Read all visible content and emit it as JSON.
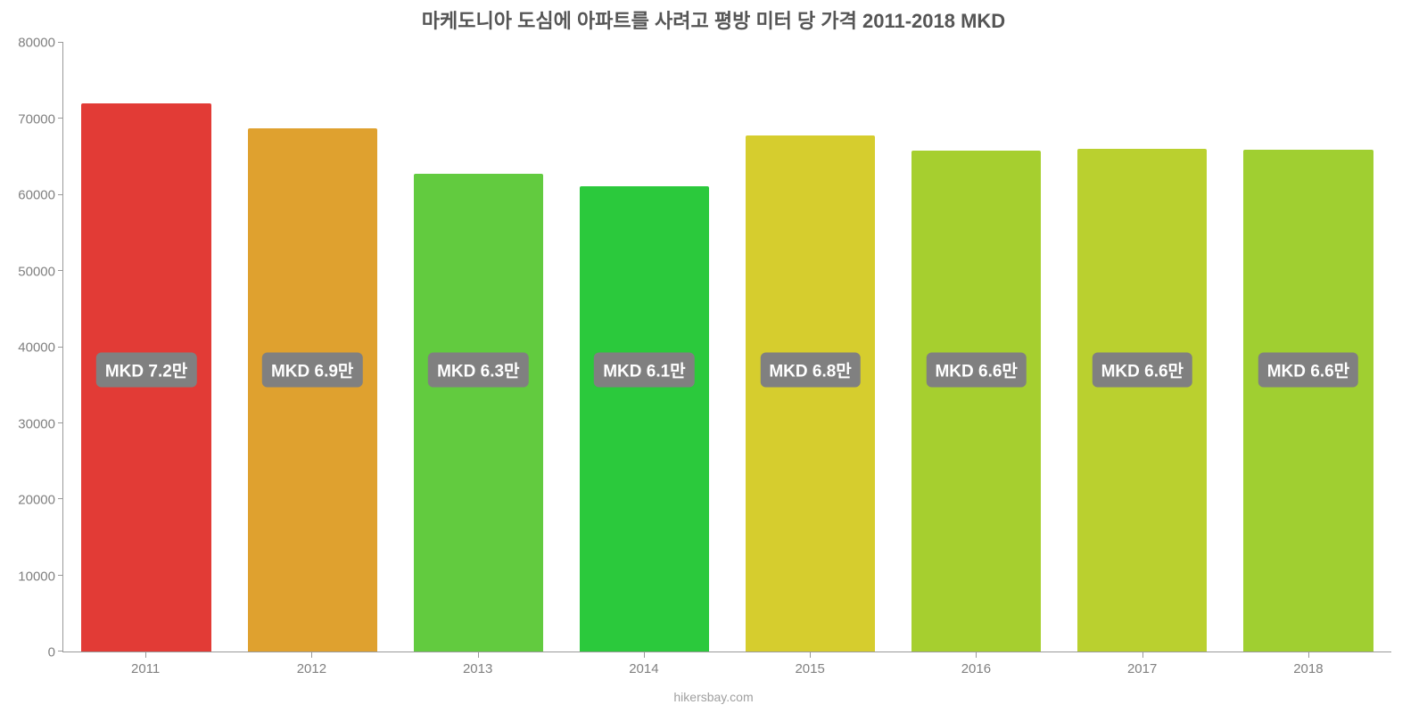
{
  "chart": {
    "type": "bar",
    "title": "마케도니아 도심에 아파트를 사려고 평방 미터 당 가격 2011-2018 MKD",
    "title_fontsize": 22,
    "title_color": "#555555",
    "categories": [
      "2011",
      "2012",
      "2013",
      "2014",
      "2015",
      "2016",
      "2017",
      "2018"
    ],
    "values": [
      72000,
      68700,
      62800,
      61200,
      67800,
      65800,
      66100,
      66000
    ],
    "bar_labels": [
      "MKD 7.2만",
      "MKD 6.9만",
      "MKD 6.3만",
      "MKD 6.1만",
      "MKD 6.8만",
      "MKD 6.6만",
      "MKD 6.6만",
      "MKD 6.6만"
    ],
    "bar_colors": [
      "#e23b36",
      "#dfa12f",
      "#62cb3f",
      "#2bc93c",
      "#d6cd2e",
      "#a6cf2f",
      "#bad02f",
      "#a0cf31"
    ],
    "bar_width": 0.78,
    "ylim": [
      0,
      80000
    ],
    "ytick_step": 10000,
    "ytick_labels": [
      "0",
      "10000",
      "20000",
      "30000",
      "40000",
      "50000",
      "60000",
      "70000",
      "80000"
    ],
    "axis_color": "#999999",
    "tick_label_color": "#808080",
    "tick_label_fontsize": 15,
    "bar_label_bg": "#808080",
    "bar_label_color": "#ffffff",
    "bar_label_fontsize": 19,
    "bar_label_baseline_value": 37000,
    "background_color": "#ffffff",
    "source": "hikersbay.com",
    "source_color": "#a0a0a0",
    "source_fontsize": 14
  }
}
